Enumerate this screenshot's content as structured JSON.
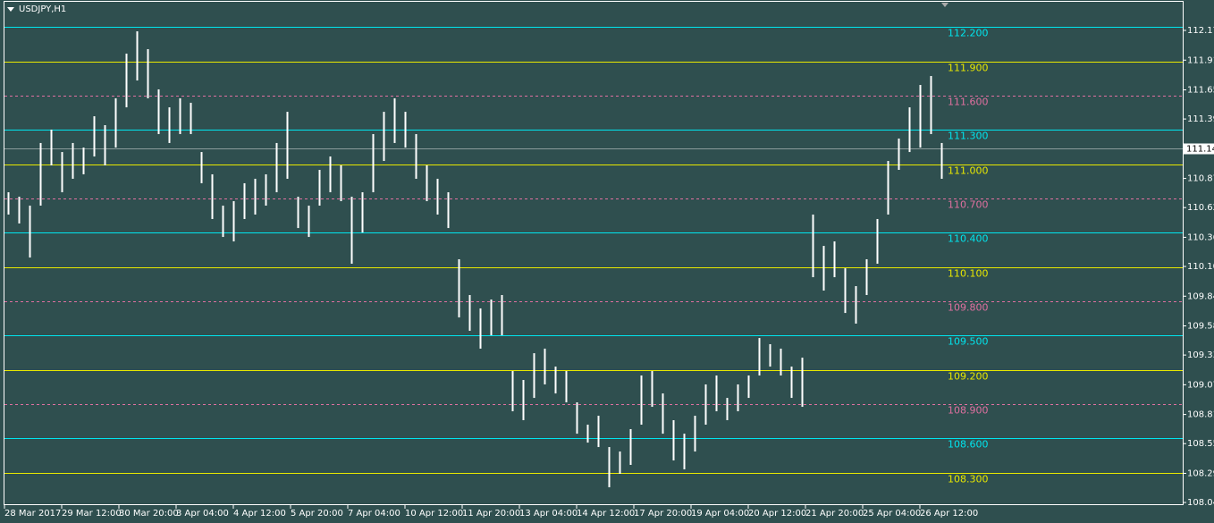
{
  "chart_data": {
    "type": "ohlc-range",
    "title": "USDJPY,H1",
    "ylim": [
      108.017,
      112.436
    ],
    "yticks": [
      {
        "value": 112.17,
        "label": "112.170"
      },
      {
        "value": 111.91,
        "label": "111.910"
      },
      {
        "value": 111.65,
        "label": "111.650"
      },
      111.395,
      {
        "value": 111.14,
        "label": "111.140"
      },
      110.875,
      {
        "value": 110.62,
        "label": "110.620"
      },
      {
        "value": 110.36,
        "label": "110.360"
      },
      110.105,
      109.845,
      109.585,
      {
        "value": 109.33,
        "label": "109.330"
      },
      {
        "value": 109.07,
        "label": "109.070"
      },
      {
        "value": 108.81,
        "label": "108.810"
      },
      108.555,
      108.295,
      {
        "value": 108.04,
        "label": "108.040"
      }
    ],
    "x_labels": [
      "28 Mar 2017",
      "29 Mar 12:00",
      "30 Mar 20:00",
      "3 Apr 04:00",
      "4 Apr 12:00",
      "5 Apr 20:00",
      "7 Apr 04:00",
      "10 Apr 12:00",
      "11 Apr 20:00",
      "13 Apr 04:00",
      "14 Apr 12:00",
      "17 Apr 20:00",
      "19 Apr 04:00",
      "20 Apr 12:00",
      "21 Apr 20:00",
      "25 Apr 04:00",
      "26 Apr 12:00"
    ],
    "color": "#ffffff",
    "high": [
      110.754,
      110.715,
      110.637,
      111.185,
      111.302,
      111.106,
      111.185,
      111.145,
      111.419,
      111.341,
      111.576,
      111.967,
      112.162,
      112.006,
      111.654,
      111.497,
      111.576,
      111.537,
      111.106,
      110.911,
      110.637,
      110.676,
      110.833,
      110.872,
      110.911,
      111.185,
      111.458,
      110.715,
      110.637,
      110.95,
      111.067,
      110.989,
      110.715,
      110.754,
      111.263,
      111.458,
      111.576,
      111.458,
      111.263,
      110.989,
      110.872,
      110.754,
      110.168,
      109.855,
      109.738,
      109.816,
      109.855,
      109.19,
      109.112,
      109.346,
      109.386,
      109.229,
      109.19,
      108.916,
      108.721,
      108.799,
      108.525,
      108.486,
      108.682,
      109.151,
      109.19,
      108.994,
      108.76,
      108.642,
      108.799,
      109.073,
      109.151,
      108.955,
      109.073,
      109.151,
      109.479,
      109.425,
      109.386,
      109.229,
      109.307,
      110.559,
      110.285,
      110.324,
      110.089,
      109.933,
      110.168,
      110.52,
      111.028,
      111.224,
      111.497,
      111.693,
      111.771,
      111.185
    ],
    "low": [
      110.559,
      110.481,
      110.183,
      110.637,
      110.989,
      110.754,
      110.872,
      110.911,
      111.067,
      110.989,
      111.145,
      111.497,
      111.732,
      111.576,
      111.263,
      111.185,
      111.263,
      111.263,
      110.833,
      110.52,
      110.363,
      110.324,
      110.52,
      110.559,
      110.637,
      110.754,
      110.872,
      110.441,
      110.363,
      110.637,
      110.754,
      110.676,
      110.129,
      110.402,
      110.754,
      111.028,
      111.185,
      111.145,
      110.872,
      110.676,
      110.559,
      110.441,
      109.659,
      109.542,
      109.386,
      109.503,
      109.503,
      108.838,
      108.76,
      108.955,
      109.073,
      108.994,
      108.916,
      108.642,
      108.564,
      108.525,
      108.173,
      108.291,
      108.369,
      108.721,
      108.877,
      108.642,
      108.408,
      108.33,
      108.486,
      108.721,
      108.838,
      108.76,
      108.838,
      108.955,
      109.151,
      109.229,
      109.151,
      108.955,
      108.877,
      110.011,
      109.894,
      110.011,
      109.698,
      109.605,
      109.855,
      110.129,
      110.559,
      110.95,
      111.106,
      111.145,
      111.263,
      110.872
    ],
    "levels": [
      {
        "value": 112.2,
        "label": "112.200",
        "color": "#00e5ee",
        "style": "solid"
      },
      {
        "value": 111.9,
        "label": "111.900",
        "color": "#e8e800",
        "style": "solid"
      },
      {
        "value": 111.6,
        "label": "111.600",
        "color": "#e070a0",
        "style": "dashed"
      },
      {
        "value": 111.3,
        "label": "111.300",
        "color": "#00e5ee",
        "style": "solid"
      },
      {
        "value": 111.0,
        "label": "111.000",
        "color": "#e8e800",
        "style": "solid"
      },
      {
        "value": 110.7,
        "label": "110.700",
        "color": "#e070a0",
        "style": "dashed"
      },
      {
        "value": 110.4,
        "label": "110.400",
        "color": "#00e5ee",
        "style": "solid"
      },
      {
        "value": 110.1,
        "label": "110.100",
        "color": "#e8e800",
        "style": "solid"
      },
      {
        "value": 109.8,
        "label": "109.800",
        "color": "#e070a0",
        "style": "dashed"
      },
      {
        "value": 109.5,
        "label": "109.500",
        "color": "#00e5ee",
        "style": "solid"
      },
      {
        "value": 109.2,
        "label": "109.200",
        "color": "#e8e800",
        "style": "solid"
      },
      {
        "value": 108.9,
        "label": "108.900",
        "color": "#e070a0",
        "style": "dashed"
      },
      {
        "value": 108.6,
        "label": "108.600",
        "color": "#00e5ee",
        "style": "solid"
      },
      {
        "value": 108.3,
        "label": "108.300",
        "color": "#e8e800",
        "style": "solid"
      }
    ],
    "current_price": {
      "value": 111.14,
      "label": "111.140"
    }
  }
}
